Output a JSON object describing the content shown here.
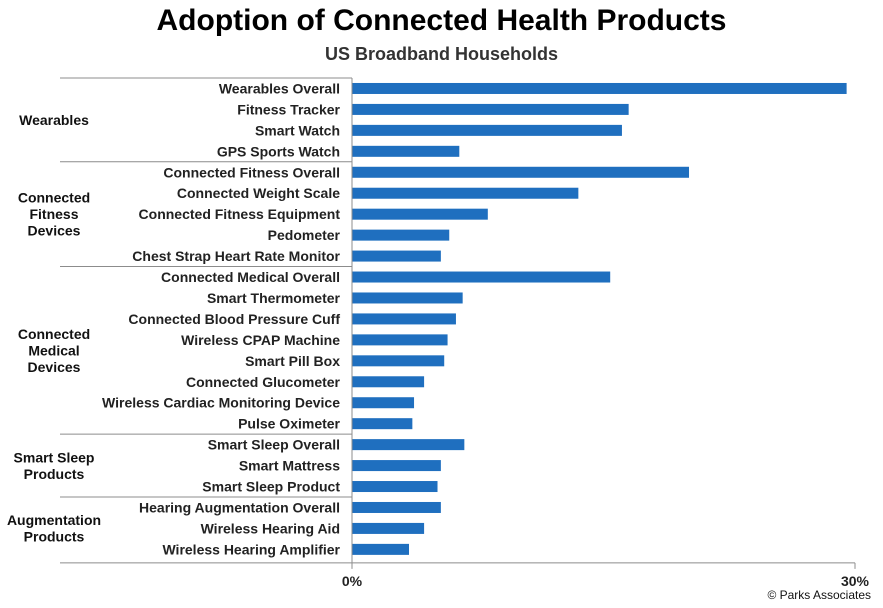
{
  "chart_data": {
    "type": "bar",
    "orientation": "horizontal",
    "title": "Adoption of Connected Health Products",
    "subtitle": "US Broadband Households",
    "xlim": [
      0,
      30
    ],
    "x_tick_labels": [
      "0%",
      "30%"
    ],
    "grid": false,
    "legend": "none",
    "bar_color": "#1F6FBF",
    "groups": [
      {
        "label": "Wearables",
        "label_lines": [
          "Wearables"
        ],
        "categories": [
          "Wearables Overall",
          "Fitness Tracker",
          "Smart Watch",
          "GPS Sports Watch"
        ],
        "values": [
          29.5,
          16.5,
          16.1,
          6.4
        ]
      },
      {
        "label": "Connected Fitness Devices",
        "label_lines": [
          "Connected",
          "Fitness",
          "Devices"
        ],
        "categories": [
          "Connected Fitness Overall",
          "Connected Weight Scale",
          "Connected Fitness Equipment",
          "Pedometer",
          "Chest Strap Heart Rate Monitor"
        ],
        "values": [
          20.1,
          13.5,
          8.1,
          5.8,
          5.3
        ]
      },
      {
        "label": "Connected Medical Devices",
        "label_lines": [
          "Connected",
          "Medical",
          "Devices"
        ],
        "categories": [
          "Connected Medical Overall",
          "Smart Thermometer",
          "Connected Blood Pressure Cuff",
          "Wireless CPAP Machine",
          "Smart Pill Box",
          "Connected Glucometer",
          "Wireless Cardiac Monitoring Device",
          "Pulse Oximeter"
        ],
        "values": [
          15.4,
          6.6,
          6.2,
          5.7,
          5.5,
          4.3,
          3.7,
          3.6
        ]
      },
      {
        "label": "Smart Sleep Products",
        "label_lines": [
          "Smart Sleep",
          "Products"
        ],
        "categories": [
          "Smart Sleep Overall",
          "Smart Mattress",
          "Smart Sleep Product"
        ],
        "values": [
          6.7,
          5.3,
          5.1
        ]
      },
      {
        "label": "Augmentation Products",
        "label_lines": [
          "Augmentation",
          "Products"
        ],
        "categories": [
          "Hearing Augmentation Overall",
          "Wireless Hearing Aid",
          "Wireless Hearing Amplifier"
        ],
        "values": [
          5.3,
          4.3,
          3.4
        ]
      }
    ]
  },
  "footer": "© Parks Associates"
}
